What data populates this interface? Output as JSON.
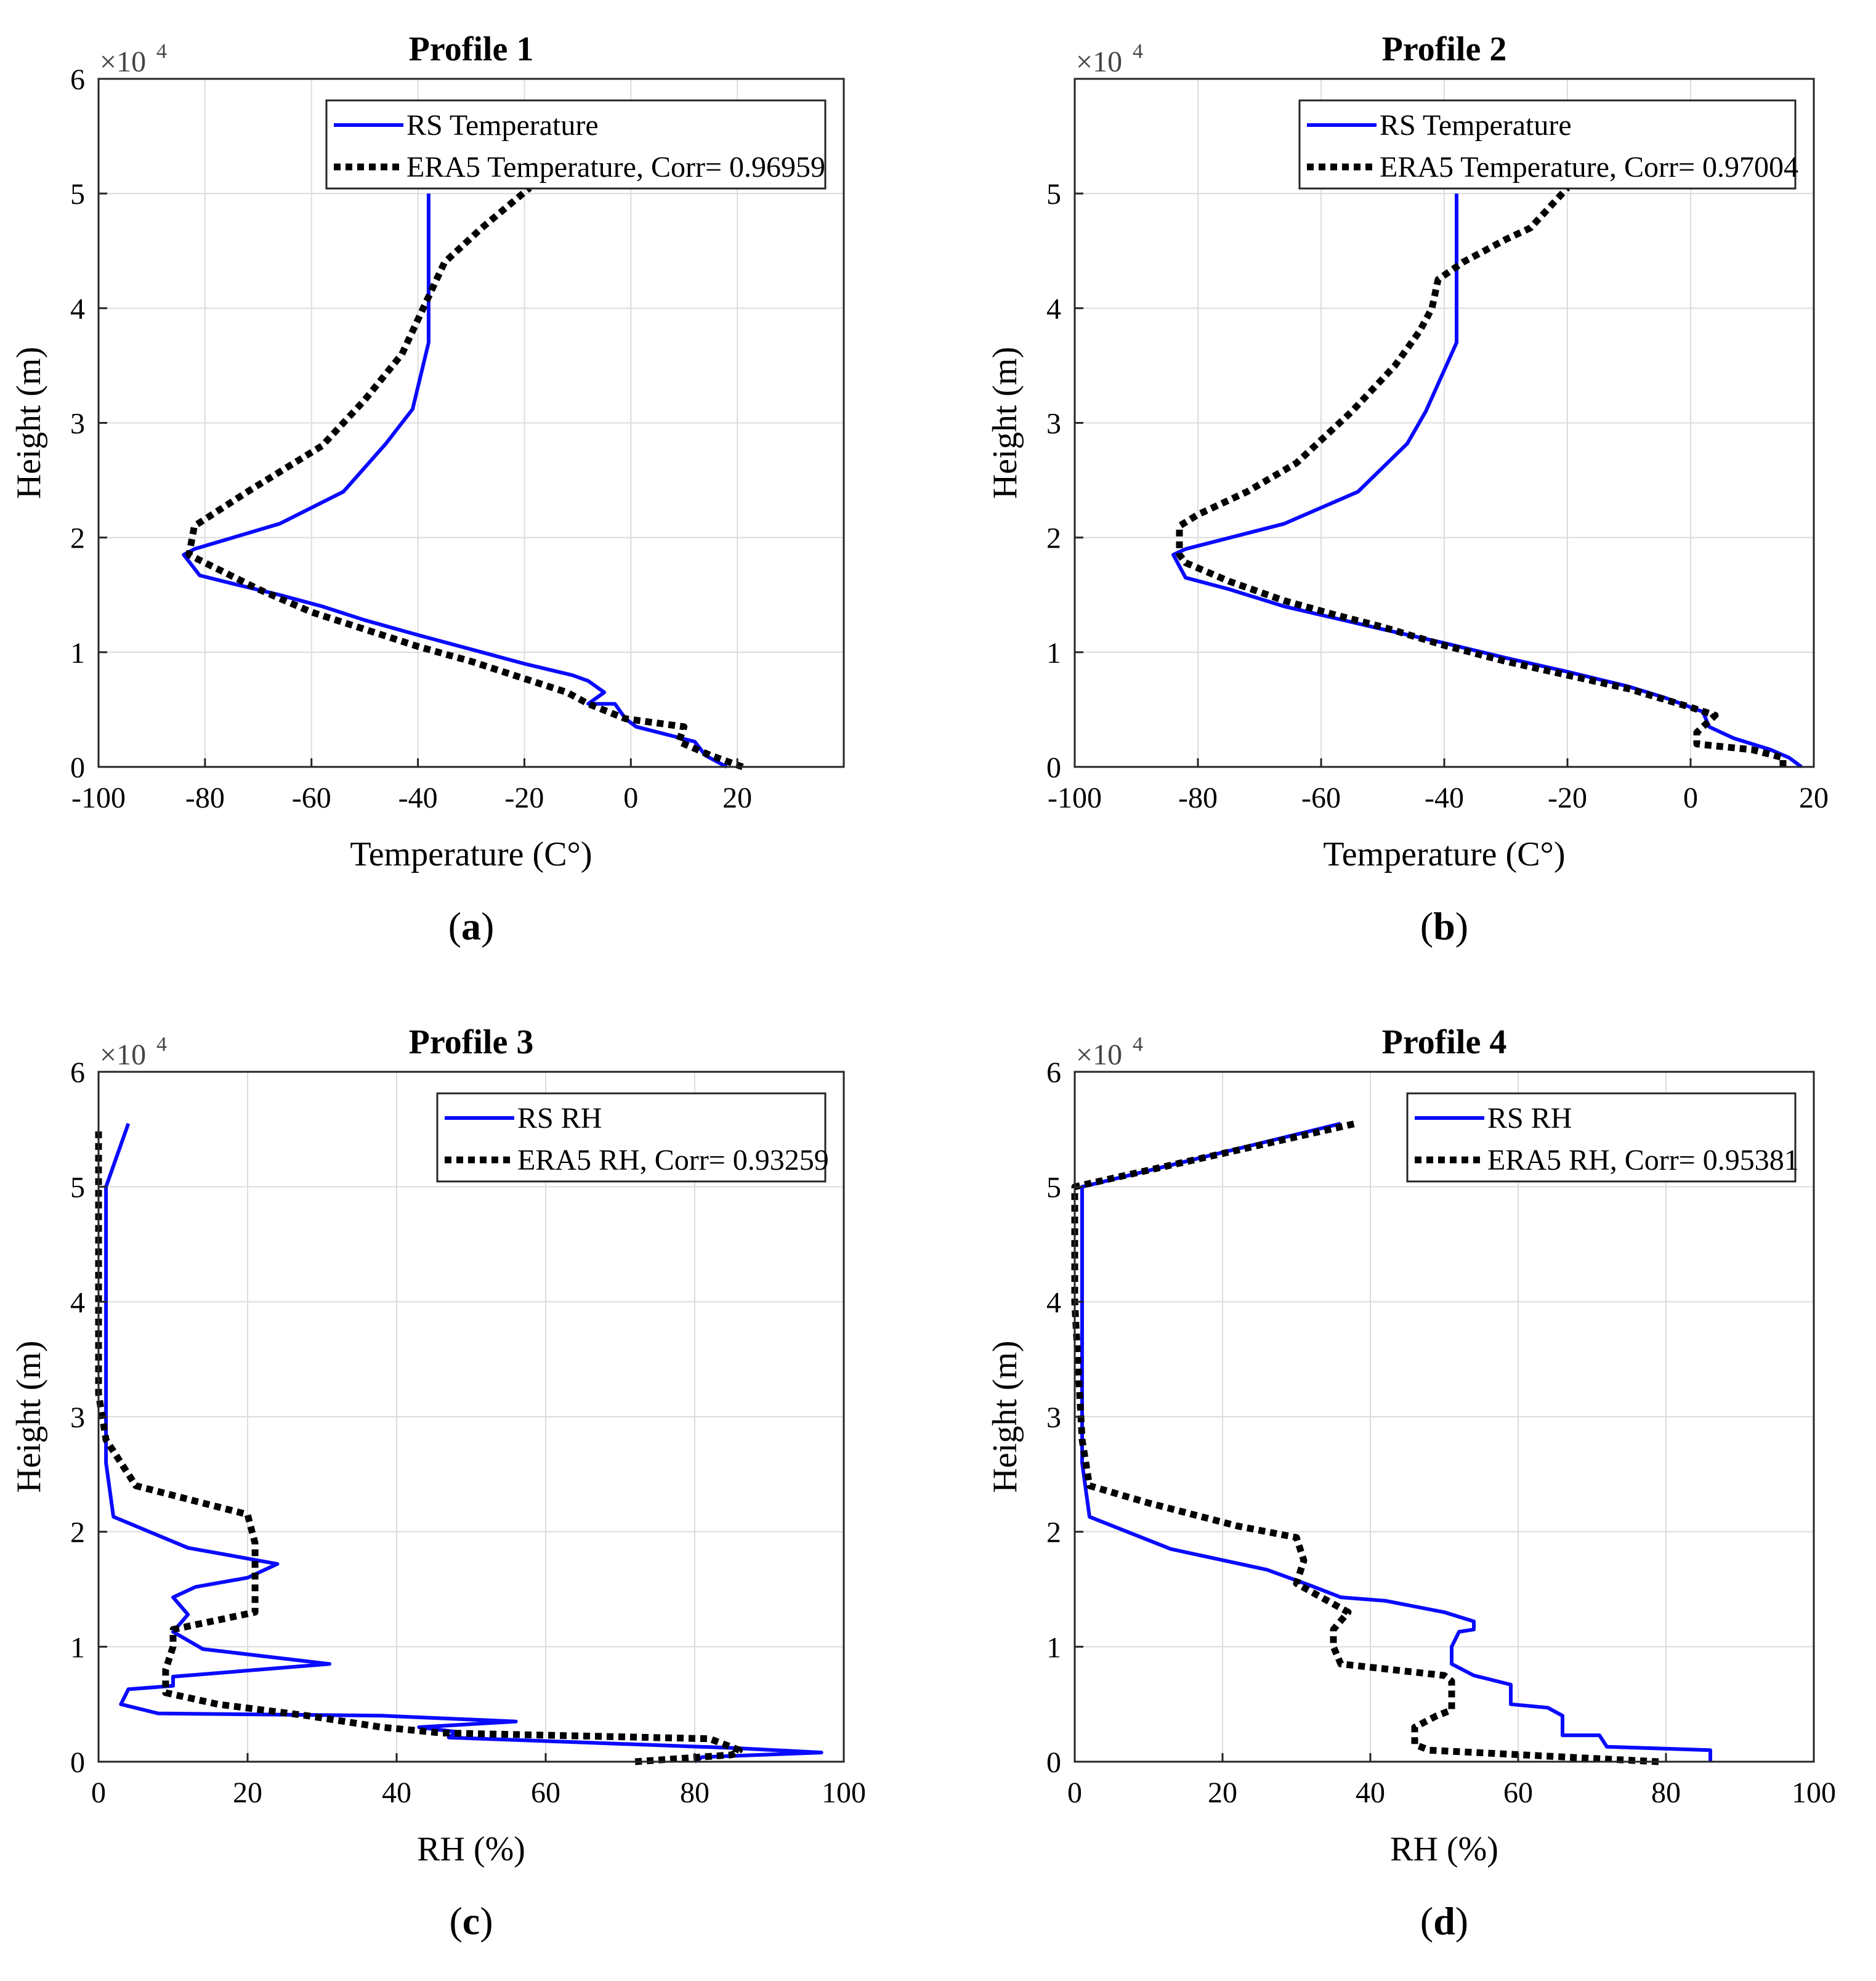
{
  "chart_data": [
    {
      "type": "line",
      "panel": "a",
      "title": "Profile 1",
      "xlabel": "Temperature (C°)",
      "ylabel": "Height (m)",
      "y_multiplier": "×10",
      "y_multiplier_exp": "4",
      "xlim": [
        -100,
        40
      ],
      "ylim": [
        0,
        60000
      ],
      "xticks": [
        -100,
        -80,
        -60,
        -40,
        -20,
        0,
        20
      ],
      "xtick_labels": [
        "-100",
        "-80",
        "-60",
        "-40",
        "-20",
        "0",
        "20"
      ],
      "yticks": [
        0,
        10000,
        20000,
        30000,
        40000,
        50000,
        60000
      ],
      "ytick_labels": [
        "0",
        "1",
        "2",
        "3",
        "4",
        "5",
        "6"
      ],
      "grid": true,
      "legend_position": "top-right",
      "caption": "a",
      "series": [
        {
          "name": "RS Temperature",
          "color": "#0a0aff",
          "style": "solid",
          "x": [
            18,
            14,
            12,
            1,
            -1,
            -3,
            -8,
            -5,
            -8,
            -11,
            -20,
            -28,
            -40,
            -50,
            -58,
            -66,
            -75,
            -81,
            -84,
            -82,
            -66,
            -54,
            -46,
            -41,
            -38,
            -38,
            -38
          ],
          "y": [
            0,
            1000,
            2200,
            3500,
            4200,
            5500,
            5500,
            6500,
            7500,
            8000,
            9000,
            10000,
            11500,
            12800,
            14000,
            15000,
            16000,
            16700,
            18500,
            19000,
            21200,
            24000,
            28200,
            31200,
            37000,
            42000,
            50000
          ]
        },
        {
          "name": "ERA5 Temperature",
          "corr_label": "Corr= 0.96959",
          "color": "#000000",
          "style": "dotted",
          "x": [
            21,
            15,
            9,
            10,
            -1,
            -8,
            -12,
            -22,
            -30,
            -40,
            -50,
            -60,
            -70,
            -80,
            -83,
            -82,
            -72,
            -58,
            -50,
            -43,
            -39,
            -35,
            -28,
            -19
          ],
          "y": [
            0,
            1000,
            2200,
            3500,
            4200,
            5500,
            6500,
            8000,
            9200,
            10500,
            12000,
            13500,
            15500,
            17800,
            18500,
            21000,
            24000,
            28000,
            32000,
            36000,
            40000,
            44000,
            47000,
            50500
          ]
        }
      ]
    },
    {
      "type": "line",
      "panel": "b",
      "title": "Profile 2",
      "xlabel": "Temperature (C°)",
      "ylabel": "Height (m)",
      "y_multiplier": "×10",
      "y_multiplier_exp": "4",
      "xlim": [
        -100,
        20
      ],
      "ylim": [
        0,
        60000
      ],
      "xticks": [
        -100,
        -80,
        -60,
        -40,
        -20,
        0,
        20
      ],
      "xtick_labels": [
        "-100",
        "-80",
        "-60",
        "-40",
        "-20",
        "0",
        "20"
      ],
      "yticks": [
        0,
        10000,
        20000,
        30000,
        40000,
        50000
      ],
      "ytick_labels": [
        "0",
        "1",
        "2",
        "3",
        "4",
        "5"
      ],
      "grid": true,
      "legend_position": "top-right",
      "caption": "b",
      "series": [
        {
          "name": "RS Temperature",
          "color": "#0a0aff",
          "style": "solid",
          "x": [
            18,
            16,
            13,
            7,
            3,
            2,
            -4,
            -10,
            -20,
            -30,
            -40,
            -50,
            -58,
            -66,
            -75,
            -82,
            -84,
            -82,
            -66,
            -54,
            -46,
            -43,
            -38,
            -38,
            -38
          ],
          "y": [
            0,
            800,
            1500,
            2500,
            3500,
            4800,
            6000,
            7000,
            8300,
            9500,
            10800,
            12000,
            13000,
            14000,
            15500,
            16500,
            18500,
            19000,
            21200,
            24000,
            28200,
            31000,
            37000,
            43000,
            50000
          ]
        },
        {
          "name": "ERA5 Temperature",
          "corr_label": "Corr= 0.97004",
          "color": "#000000",
          "style": "dotted",
          "x": [
            15,
            15,
            10,
            1,
            1,
            4,
            0,
            -10,
            -20,
            -30,
            -40,
            -50,
            -58,
            -66,
            -75,
            -82,
            -83,
            -83,
            -80,
            -72,
            -64,
            -55,
            -48,
            -44,
            -42,
            -41,
            -37,
            -30,
            -26,
            -20
          ],
          "y": [
            0,
            800,
            1500,
            2000,
            3000,
            4500,
            5200,
            6800,
            8000,
            9200,
            10600,
            12200,
            13300,
            14500,
            16200,
            17800,
            18500,
            21000,
            22000,
            24000,
            26500,
            31000,
            35000,
            38000,
            40000,
            42500,
            44000,
            46000,
            47000,
            50500
          ]
        }
      ]
    },
    {
      "type": "line",
      "panel": "c",
      "title": "Profile 3",
      "xlabel": "RH (%)",
      "ylabel": "Height (m)",
      "y_multiplier": "×10",
      "y_multiplier_exp": "4",
      "xlim": [
        0,
        100
      ],
      "ylim": [
        0,
        60000
      ],
      "xticks": [
        0,
        20,
        40,
        60,
        80,
        100
      ],
      "xtick_labels": [
        "0",
        "20",
        "40",
        "60",
        "80",
        "100"
      ],
      "yticks": [
        0,
        10000,
        20000,
        30000,
        40000,
        50000,
        60000
      ],
      "ytick_labels": [
        "0",
        "1",
        "2",
        "3",
        "4",
        "5",
        "6"
      ],
      "grid": true,
      "legend_position": "top-right",
      "caption": "c",
      "series": [
        {
          "name": "RS RH",
          "color": "#0a0aff",
          "style": "solid",
          "x": [
            80,
            81,
            97,
            85,
            64,
            47,
            48,
            43,
            56,
            38,
            8,
            3,
            4,
            10,
            10,
            31,
            14,
            10,
            12,
            10,
            13,
            20,
            24,
            12,
            2,
            1,
            1,
            1,
            4
          ],
          "y": [
            0,
            400,
            800,
            1200,
            1700,
            2100,
            2600,
            3000,
            3500,
            4000,
            4200,
            5000,
            6300,
            6600,
            7400,
            8500,
            9800,
            11300,
            12800,
            14300,
            15200,
            16000,
            17200,
            18600,
            21300,
            26000,
            40000,
            50000,
            55500
          ]
        },
        {
          "name": "ERA5 RH",
          "corr_label": "Corr= 0.93259",
          "color": "#000000",
          "style": "dotted",
          "x": [
            72,
            85,
            86,
            82,
            46,
            38,
            32,
            28,
            16,
            9,
            9,
            10,
            10,
            21,
            21,
            21,
            20,
            5,
            1,
            0,
            0,
            0
          ],
          "y": [
            0,
            600,
            1000,
            2000,
            2500,
            3000,
            3600,
            4000,
            5000,
            6000,
            8000,
            10000,
            11500,
            13000,
            16000,
            19000,
            21500,
            24000,
            28000,
            32000,
            45000,
            55000
          ]
        }
      ]
    },
    {
      "type": "line",
      "panel": "d",
      "title": "Profile 4",
      "xlabel": "RH (%)",
      "ylabel": "Height (m)",
      "y_multiplier": "×10",
      "y_multiplier_exp": "4",
      "xlim": [
        0,
        100
      ],
      "ylim": [
        0,
        60000
      ],
      "xticks": [
        0,
        20,
        40,
        60,
        80,
        100
      ],
      "xtick_labels": [
        "0",
        "20",
        "40",
        "60",
        "80",
        "100"
      ],
      "yticks": [
        0,
        10000,
        20000,
        30000,
        40000,
        50000,
        60000
      ],
      "ytick_labels": [
        "0",
        "1",
        "2",
        "3",
        "4",
        "5",
        "6"
      ],
      "grid": true,
      "legend_position": "top-right",
      "caption": "d",
      "series": [
        {
          "name": "RS RH",
          "color": "#0a0aff",
          "style": "solid",
          "x": [
            86,
            86,
            72,
            71,
            66,
            66,
            64,
            59,
            59,
            54,
            51,
            51,
            52,
            54,
            54,
            50,
            42,
            36,
            32,
            26,
            13,
            2,
            1,
            1,
            1,
            36
          ],
          "y": [
            0,
            1000,
            1300,
            2300,
            2300,
            4000,
            4700,
            5000,
            6700,
            7500,
            8500,
            10000,
            11300,
            11500,
            12200,
            13000,
            14000,
            14300,
            15300,
            16700,
            18500,
            21300,
            26000,
            40000,
            50000,
            55500
          ]
        },
        {
          "name": "ERA5 RH",
          "corr_label": "Corr= 0.95381",
          "color": "#000000",
          "style": "dotted",
          "x": [
            79,
            48,
            46,
            46,
            49,
            51,
            51,
            50,
            36,
            35,
            35,
            37,
            30,
            31,
            30,
            22,
            10,
            2,
            1,
            0,
            0,
            38
          ],
          "y": [
            0,
            1000,
            1500,
            3000,
            4000,
            4500,
            7000,
            7500,
            8500,
            10000,
            11500,
            13000,
            15500,
            17500,
            19500,
            20500,
            22500,
            24000,
            28000,
            40000,
            50000,
            55500
          ]
        }
      ]
    }
  ]
}
